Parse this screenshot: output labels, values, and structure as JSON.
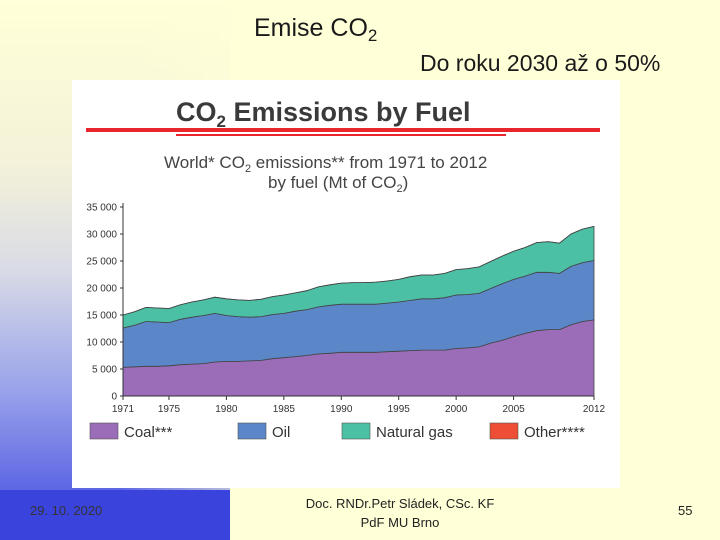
{
  "slide": {
    "title_main": "Emise CO",
    "title_sub": "2",
    "subtitle": "Do roku 2030 až o 50%",
    "footer_date": "29. 10. 2020",
    "footer_author_line1": "Doc. RNDr.Petr Sládek, CSc. KF",
    "footer_author_line2": "PdF MU Brno",
    "page_number": "55"
  },
  "chart_data": {
    "type": "area",
    "stacked": true,
    "title_main": "CO",
    "title_sub": "2",
    "title_rest": " Emissions by Fuel",
    "subtitle_line1": "World* CO",
    "subtitle_line1_sub": "2",
    "subtitle_line1_rest": " emissions** from 1971 to 2012",
    "subtitle_line2": "by fuel (Mt of CO",
    "subtitle_line2_sub": "2",
    "subtitle_line2_rest": ")",
    "xlim": [
      1971,
      2012
    ],
    "ylim": [
      0,
      35000
    ],
    "x_ticks": [
      "1971",
      "1975",
      "1980",
      "1985",
      "1990",
      "1995",
      "2000",
      "2005",
      "2012"
    ],
    "y_ticks": [
      "0",
      "5 000",
      "10 000",
      "15 000",
      "20 000",
      "25 000",
      "30 000",
      "35 000"
    ],
    "x": [
      1971,
      1972,
      1973,
      1974,
      1975,
      1976,
      1977,
      1978,
      1979,
      1980,
      1981,
      1982,
      1983,
      1984,
      1985,
      1986,
      1987,
      1988,
      1989,
      1990,
      1991,
      1992,
      1993,
      1994,
      1995,
      1996,
      1997,
      1998,
      1999,
      2000,
      2001,
      2002,
      2003,
      2004,
      2005,
      2006,
      2007,
      2008,
      2009,
      2010,
      2011,
      2012
    ],
    "series": [
      {
        "name": "Coal***",
        "color": "#9b6db8",
        "values": [
          5300,
          5400,
          5500,
          5500,
          5600,
          5800,
          5900,
          6000,
          6300,
          6400,
          6400,
          6500,
          6600,
          6900,
          7100,
          7300,
          7500,
          7800,
          7900,
          8100,
          8100,
          8100,
          8100,
          8200,
          8300,
          8400,
          8500,
          8500,
          8500,
          8800,
          8900,
          9100,
          9800,
          10300,
          11000,
          11600,
          12100,
          12300,
          12300,
          13200,
          13800,
          14100
        ]
      },
      {
        "name": "Oil",
        "color": "#5b86c8",
        "values": [
          7300,
          7700,
          8300,
          8200,
          8000,
          8400,
          8700,
          8900,
          9000,
          8500,
          8300,
          8100,
          8100,
          8200,
          8200,
          8400,
          8500,
          8700,
          8900,
          8900,
          8900,
          8900,
          8900,
          9000,
          9100,
          9300,
          9500,
          9500,
          9700,
          9900,
          9900,
          9900,
          10100,
          10500,
          10600,
          10600,
          10800,
          10600,
          10400,
          10800,
          10900,
          11000
        ]
      },
      {
        "name": "Natural gas",
        "color": "#4cc0a4",
        "values": [
          2400,
          2500,
          2600,
          2600,
          2600,
          2700,
          2800,
          2900,
          3000,
          3100,
          3100,
          3100,
          3200,
          3300,
          3400,
          3400,
          3500,
          3700,
          3800,
          3900,
          4000,
          4000,
          4100,
          4100,
          4200,
          4400,
          4400,
          4400,
          4500,
          4700,
          4800,
          4900,
          5000,
          5100,
          5200,
          5300,
          5500,
          5700,
          5600,
          6000,
          6200,
          6300
        ]
      },
      {
        "name": "Other****",
        "color": "#ee4e35",
        "values": [
          0,
          0,
          0,
          0,
          0,
          0,
          0,
          0,
          0,
          0,
          0,
          0,
          0,
          0,
          0,
          0,
          0,
          0,
          0,
          0,
          0,
          0,
          0,
          0,
          0,
          0,
          0,
          0,
          0,
          0,
          0,
          0,
          0,
          0,
          0,
          0,
          0,
          0,
          0,
          0,
          0,
          0
        ]
      }
    ],
    "legend_position": "bottom",
    "grid": false
  },
  "colors": {
    "accent_red": "#e8262b",
    "background": "#ffffd8",
    "footer_bar": "#3a44dc",
    "chart_title": "#3a3a3a"
  }
}
